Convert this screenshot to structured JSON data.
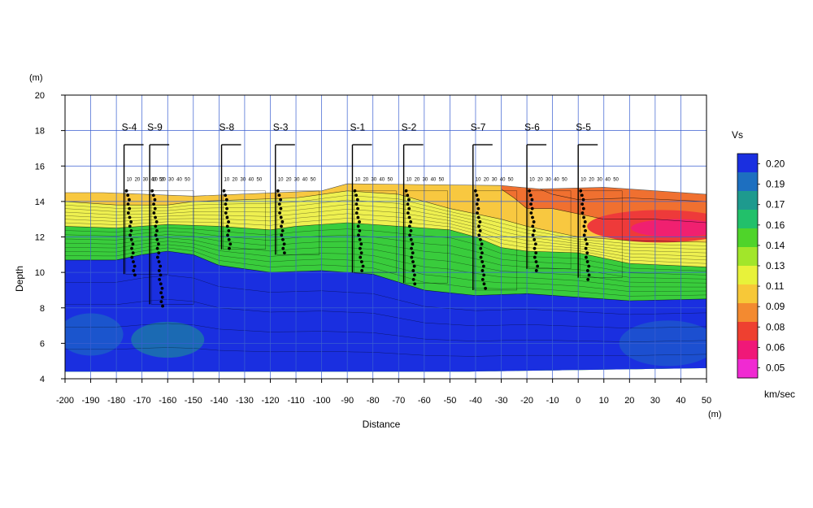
{
  "chart_data": {
    "type": "heatmap",
    "title": "",
    "xlabel": "Distance",
    "ylabel": "Depth",
    "x_unit": "(m)",
    "y_unit": "(m)",
    "xlim": [
      -200,
      50
    ],
    "ylim": [
      4,
      20
    ],
    "x_ticks": [
      -200,
      -190,
      -180,
      -170,
      -160,
      -150,
      -140,
      -130,
      -120,
      -110,
      -100,
      -90,
      -80,
      -70,
      -60,
      -50,
      -40,
      -30,
      -20,
      -10,
      0,
      10,
      20,
      30,
      40,
      50
    ],
    "y_ticks": [
      4,
      6,
      8,
      10,
      12,
      14,
      16,
      18,
      20
    ],
    "grid": true,
    "colorbar": {
      "title": "Vs",
      "unit": "km/sec",
      "labels": [
        "0.20",
        "0.19",
        "0.17",
        "0.16",
        "0.14",
        "0.13",
        "0.11",
        "0.09",
        "0.08",
        "0.06",
        "0.05"
      ],
      "colors": [
        "#1a2fe0",
        "#1d6fc0",
        "#1e9a8e",
        "#22c06a",
        "#4fd42a",
        "#a2e62a",
        "#e8f23a",
        "#f7c838",
        "#f38a30",
        "#ee4030",
        "#f01878",
        "#f02ad2"
      ],
      "placement": "right"
    },
    "surface_elevation": [
      {
        "x": -200,
        "depth": 14.5
      },
      {
        "x": -185,
        "depth": 14.5
      },
      {
        "x": -150,
        "depth": 14.3
      },
      {
        "x": -100,
        "depth": 14.6
      },
      {
        "x": -90,
        "depth": 15.0
      },
      {
        "x": -30,
        "depth": 14.9
      },
      {
        "x": -15,
        "depth": 14.7
      },
      {
        "x": 10,
        "depth": 14.8
      },
      {
        "x": 50,
        "depth": 14.4
      }
    ],
    "bottom_elevation": [
      {
        "x": -200,
        "depth": 4.4
      },
      {
        "x": -45,
        "depth": 4.4
      },
      {
        "x": 50,
        "depth": 4.6
      }
    ],
    "vs_boundaries": [
      {
        "vs": "0.13",
        "points": [
          [
            -200,
            10.7
          ],
          [
            -180,
            10.7
          ],
          [
            -170,
            11.0
          ],
          [
            -160,
            11.2
          ],
          [
            -150,
            11.0
          ],
          [
            -140,
            10.4
          ],
          [
            -120,
            10.0
          ],
          [
            -100,
            10.1
          ],
          [
            -80,
            9.9
          ],
          [
            -60,
            9.0
          ],
          [
            -40,
            8.7
          ],
          [
            -20,
            8.8
          ],
          [
            0,
            8.6
          ],
          [
            20,
            8.4
          ],
          [
            50,
            8.5
          ]
        ]
      },
      {
        "vs": "0.11",
        "points": [
          [
            -200,
            12.6
          ],
          [
            -180,
            12.5
          ],
          [
            -160,
            12.7
          ],
          [
            -140,
            12.6
          ],
          [
            -120,
            12.4
          ],
          [
            -110,
            12.6
          ],
          [
            -90,
            12.8
          ],
          [
            -70,
            12.6
          ],
          [
            -50,
            12.4
          ],
          [
            -40,
            12.0
          ],
          [
            -30,
            11.4
          ],
          [
            -20,
            11.2
          ],
          [
            0,
            11.1
          ],
          [
            20,
            10.5
          ],
          [
            50,
            10.3
          ]
        ]
      },
      {
        "vs": "0.09",
        "points": [
          [
            -200,
            14.0
          ],
          [
            -180,
            13.8
          ],
          [
            -160,
            13.8
          ],
          [
            -150,
            14.0
          ],
          [
            -130,
            14.1
          ],
          [
            -110,
            14.2
          ],
          [
            -90,
            14.6
          ],
          [
            -70,
            14.4
          ],
          [
            -50,
            13.6
          ],
          [
            -40,
            13.3
          ],
          [
            -30,
            13.0
          ],
          [
            -20,
            12.6
          ],
          [
            0,
            12.0
          ],
          [
            20,
            11.8
          ],
          [
            50,
            11.7
          ]
        ]
      },
      {
        "vs": "0.08",
        "points": [
          [
            -30,
            14.7
          ],
          [
            -25,
            14.2
          ],
          [
            -20,
            13.6
          ],
          [
            -10,
            13.6
          ],
          [
            10,
            13.0
          ],
          [
            30,
            13.0
          ],
          [
            50,
            12.8
          ]
        ]
      },
      {
        "vs": "0.06",
        "points": [
          [
            -15,
            14.8
          ],
          [
            -10,
            14.4
          ],
          [
            0,
            14.1
          ],
          [
            20,
            14.2
          ],
          [
            50,
            14.0
          ]
        ]
      }
    ],
    "boreholes": [
      {
        "name": "S-4",
        "x": -177,
        "top": 15.3,
        "bottom": 9.9
      },
      {
        "name": "S-9",
        "x": -167,
        "top": 15.3,
        "bottom": 8.2
      },
      {
        "name": "S-8",
        "x": -139,
        "top": 15.3,
        "bottom": 11.3
      },
      {
        "name": "S-3",
        "x": -118,
        "top": 15.3,
        "bottom": 11.0
      },
      {
        "name": "S-1",
        "x": -88,
        "top": 15.3,
        "bottom": 10.0
      },
      {
        "name": "S-2",
        "x": -68,
        "top": 15.3,
        "bottom": 9.4
      },
      {
        "name": "S-7",
        "x": -41,
        "top": 15.3,
        "bottom": 9.0
      },
      {
        "name": "S-6",
        "x": -20,
        "top": 15.3,
        "bottom": 10.2
      },
      {
        "name": "S-5",
        "x": 0,
        "top": 15.3,
        "bottom": 9.7
      }
    ],
    "borehole_scale_labels": [
      "10",
      "20",
      "30",
      "40",
      "50"
    ]
  }
}
